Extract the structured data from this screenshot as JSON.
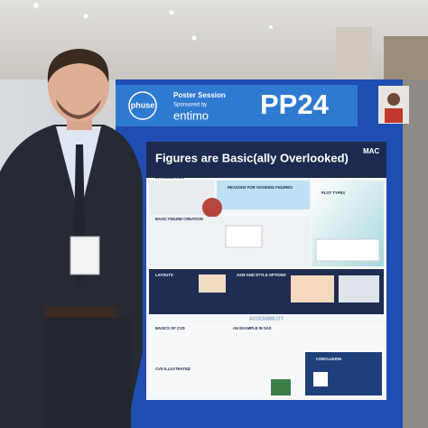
{
  "banner": {
    "logo": "phuse",
    "session": "Poster Session",
    "sponsor_line": "Sponsored by",
    "sponsor": "entimo",
    "code": "PP24"
  },
  "poster": {
    "title": "Figures are Basic(ally Overlooked)",
    "logo": "MAC",
    "sections": [
      "INTRODUCTION",
      "REASONS FOR AVOIDING FIGURES",
      "PLOT TYPES",
      "BASIC FIGURE CREATION",
      "LAYOUTS",
      "AXIS AND STYLE OPTIONS",
      "ACCESSIBILITY",
      "BASICS OF CVD",
      "AN EXAMPLE IN SAS",
      "CVD ILLUSTRATED",
      "CONCLUSION"
    ]
  }
}
